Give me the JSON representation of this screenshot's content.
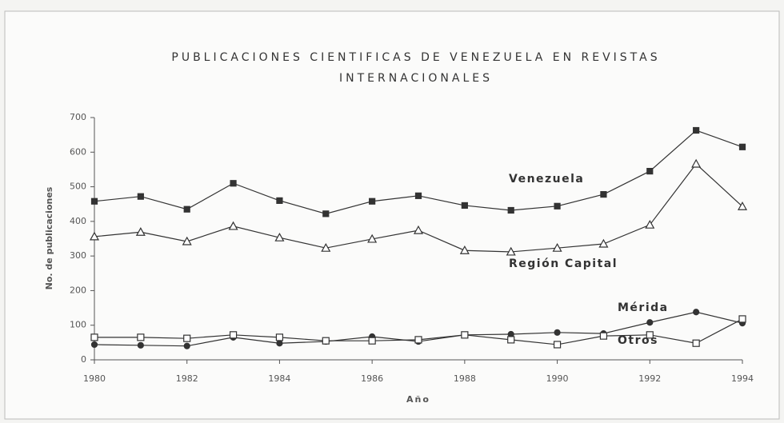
{
  "chart_data": {
    "type": "line",
    "title": [
      "PUBLICACIONES CIENTIFICAS DE VENEZUELA EN REVISTAS",
      "INTERNACIONALES"
    ],
    "x_label": "Año",
    "y_label": "No. de publicaciones",
    "x": [
      1980,
      1981,
      1982,
      1983,
      1984,
      1985,
      1986,
      1987,
      1988,
      1989,
      1990,
      1991,
      1992,
      1993,
      1994
    ],
    "xlim": [
      1980,
      1994
    ],
    "xticks": [
      1980,
      1982,
      1984,
      1986,
      1988,
      1990,
      1992,
      1994
    ],
    "ylim": [
      0,
      700
    ],
    "yticks": [
      0,
      100,
      200,
      300,
      400,
      500,
      600,
      700
    ],
    "series": [
      {
        "name": "Venezuela",
        "color": "#333333",
        "marker": "filled-square",
        "values": [
          458,
          472,
          435,
          510,
          460,
          422,
          458,
          474,
          446,
          432,
          444,
          478,
          545,
          663,
          615
        ]
      },
      {
        "name": "Región Capital",
        "color": "#333333",
        "marker": "open-triangle",
        "values": [
          356,
          369,
          342,
          386,
          353,
          323,
          349,
          374,
          316,
          312,
          323,
          335,
          390,
          566,
          443
        ]
      },
      {
        "name": "Mérida",
        "color": "#333333",
        "marker": "filled-circle",
        "values": [
          44,
          42,
          40,
          65,
          48,
          53,
          67,
          53,
          72,
          74,
          79,
          76,
          108,
          138,
          106
        ]
      },
      {
        "name": "Otros",
        "color": "#333333",
        "marker": "open-square",
        "values": [
          65,
          65,
          62,
          72,
          65,
          55,
          55,
          58,
          72,
          58,
          44,
          69,
          72,
          48,
          118
        ]
      }
    ]
  }
}
